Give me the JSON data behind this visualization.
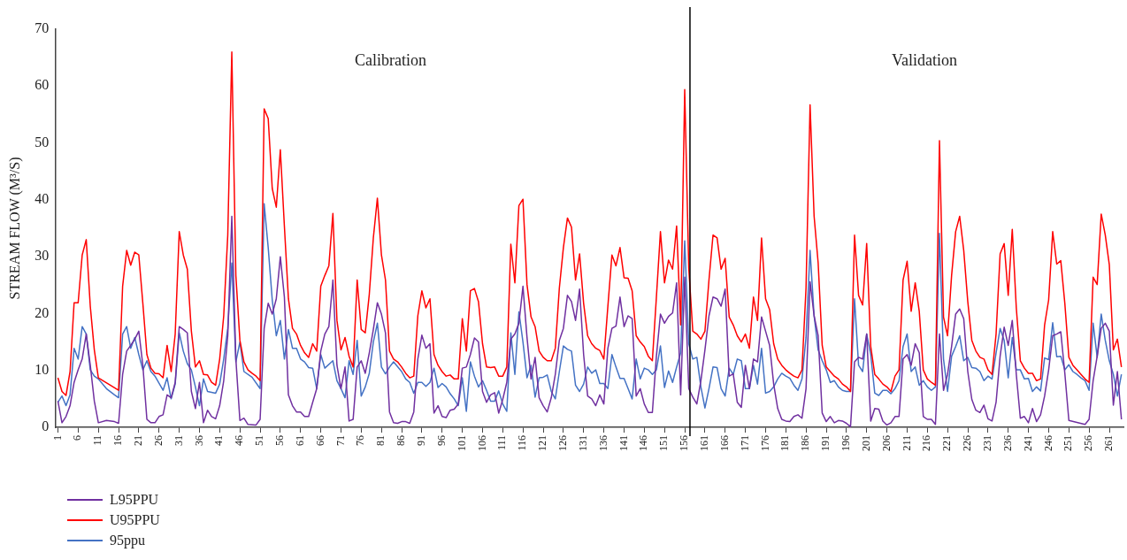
{
  "chart_data": {
    "type": "line",
    "ylabel": "STREAM FLOW (M³/S)",
    "xlim": [
      0.5,
      264.5
    ],
    "ylim": [
      0,
      70
    ],
    "yticks": [
      0,
      10,
      20,
      30,
      40,
      50,
      60,
      70
    ],
    "xticks": [
      1,
      6,
      11,
      16,
      21,
      26,
      31,
      36,
      41,
      46,
      51,
      56,
      61,
      66,
      71,
      76,
      81,
      86,
      91,
      96,
      101,
      106,
      111,
      116,
      121,
      126,
      131,
      136,
      141,
      146,
      151,
      156,
      161,
      166,
      171,
      176,
      181,
      186,
      191,
      196,
      201,
      206,
      211,
      216,
      221,
      226,
      231,
      236,
      241,
      246,
      251,
      256,
      261
    ],
    "legend": "bottom left",
    "ref_lines": [
      {
        "axis": "x",
        "value": 157.3,
        "color": "#000000"
      }
    ],
    "annotations": [
      "Calibration",
      "Validation"
    ],
    "series": [
      {
        "name": "L95PPU",
        "color": "#7030a0",
        "x": [
          1,
          2,
          3,
          4,
          5,
          6,
          7,
          8,
          9,
          10,
          11,
          13,
          15,
          16,
          17,
          18,
          19,
          20,
          21,
          22,
          23,
          24,
          25,
          26,
          27,
          28,
          29,
          30,
          31,
          32,
          33,
          34,
          35,
          36,
          37,
          38,
          39,
          40,
          41,
          42,
          43,
          44,
          45,
          46,
          47,
          48,
          50,
          51,
          52,
          53,
          54,
          55,
          56,
          57,
          58,
          59,
          60,
          61,
          62,
          63,
          64,
          65,
          66,
          67,
          68,
          69,
          70,
          71,
          72,
          73,
          74,
          75,
          76,
          77,
          78,
          79,
          80,
          81,
          82,
          83,
          84,
          85,
          86,
          87,
          88,
          89,
          90,
          91,
          92,
          93,
          94,
          95,
          96,
          97,
          98,
          99,
          100,
          101,
          102,
          103,
          104,
          105,
          106,
          107,
          108,
          109,
          110,
          111,
          112,
          113,
          114,
          115,
          116,
          117,
          118,
          119,
          120,
          121,
          122,
          123,
          124,
          125,
          126,
          127,
          128,
          129,
          130,
          131,
          132,
          133,
          134,
          135,
          136,
          137,
          138,
          139,
          140,
          141,
          142,
          143,
          144,
          145,
          146,
          147,
          148,
          149,
          150,
          151,
          152,
          153,
          154,
          155,
          156,
          157,
          158,
          159,
          160,
          161,
          162,
          163,
          164,
          165,
          166,
          167,
          168,
          169,
          170,
          171,
          172,
          173,
          174,
          175,
          176,
          177,
          178,
          179,
          180,
          181,
          182,
          183,
          184,
          185,
          186,
          187,
          188,
          189,
          190,
          191,
          192,
          193,
          194,
          195,
          196,
          197,
          198,
          199,
          200,
          201,
          202,
          203,
          204,
          205,
          206,
          207,
          208,
          209,
          210,
          211,
          212,
          213,
          214,
          215,
          216,
          217,
          218,
          219,
          220,
          221,
          222,
          223,
          224,
          225,
          226,
          227,
          228,
          229,
          230,
          231,
          232,
          233,
          234,
          235,
          236,
          237,
          238,
          239,
          240,
          241,
          242,
          243,
          244,
          245,
          246,
          247,
          248,
          249,
          250,
          251,
          255,
          256,
          257,
          258,
          259,
          260,
          261,
          262,
          263,
          264
        ],
        "values": [
          4.6,
          0.8,
          1.9,
          3.8,
          7.9,
          10.1,
          12,
          16.4,
          10.9,
          4.6,
          0.8,
          1.2,
          1,
          0.7,
          9.3,
          13.4,
          14.4,
          15.5,
          16.9,
          10.9,
          1.4,
          0.8,
          0.8,
          1.9,
          2.2,
          5.7,
          5.2,
          7.9,
          17.7,
          17.2,
          16.6,
          6.3,
          3.3,
          7.9,
          0.8,
          3,
          1.9,
          1.5,
          3.8,
          8.2,
          16.1,
          37.1,
          12,
          1.2,
          1.6,
          0.5,
          0.4,
          1.4,
          17.4,
          21.8,
          19.9,
          22.6,
          30,
          22.9,
          5.7,
          3.8,
          2.7,
          2.7,
          1.9,
          1.9,
          4.4,
          6.8,
          13.4,
          16.4,
          17.7,
          25.9,
          10.9,
          6.8,
          10.6,
          1.1,
          1.4,
          10.6,
          11.7,
          9.5,
          13.1,
          17.2,
          21.9,
          19.9,
          16.6,
          2.7,
          0.8,
          0.7,
          1,
          1,
          0.7,
          2.7,
          12,
          16.2,
          13.9,
          14.7,
          2.5,
          3.8,
          1.9,
          1.7,
          3,
          3.2,
          4.1,
          10.4,
          10.6,
          12.8,
          15.7,
          15,
          6.3,
          4.4,
          5.7,
          6.1,
          2.5,
          4.9,
          7.9,
          15.5,
          16.4,
          18.3,
          24.8,
          15.8,
          8.5,
          12.3,
          5.2,
          3.8,
          2.7,
          5.2,
          9.3,
          15.3,
          17.4,
          23.2,
          22.1,
          18.8,
          24.3,
          12.8,
          5.5,
          5,
          3.8,
          5.7,
          4.1,
          13.9,
          17.4,
          17.8,
          22.9,
          17.7,
          19.6,
          19.1,
          5.5,
          6.8,
          4.1,
          2.6,
          2.6,
          12.5,
          19.9,
          18.3,
          19.5,
          20.1,
          25.4,
          5.7,
          26.4,
          6.8,
          5.3,
          4.1,
          8.2,
          13.6,
          19.6,
          22.9,
          22.6,
          21.3,
          24.3,
          9,
          9.4,
          4.4,
          3.5,
          10.9,
          6.8,
          12,
          11.5,
          19.4,
          16.9,
          14.4,
          7.6,
          3.3,
          1.4,
          1.1,
          1,
          1.9,
          2.2,
          1.6,
          6.8,
          25.6,
          19.6,
          16.1,
          2.5,
          1,
          1.9,
          0.8,
          1.2,
          1.1,
          0.7,
          0.1,
          11.5,
          12.3,
          12,
          16.4,
          1.1,
          3.3,
          3.2,
          1.1,
          0.4,
          0.8,
          1.9,
          1.9,
          12,
          12.8,
          10.9,
          14.7,
          13.1,
          1.9,
          1.4,
          1.4,
          0.5,
          16.4,
          6.5,
          9.3,
          14.2,
          19.9,
          20.8,
          19.1,
          9.8,
          4.9,
          3,
          2.6,
          3.9,
          1.5,
          1.1,
          4.4,
          12.5,
          17.6,
          14.4,
          18.8,
          9.3,
          1.6,
          1.9,
          0.8,
          3.3,
          1,
          2.2,
          5.5,
          10.1,
          16.1,
          16.4,
          16.8,
          9.5,
          1.2,
          0.5,
          1.4,
          8.2,
          12.5,
          17.4,
          18.3,
          16.9,
          3.9,
          9.8,
          1.4
        ]
      },
      {
        "name": "U95PPU",
        "color": "#ff0000",
        "x": [
          1,
          2,
          3,
          4,
          5,
          6,
          7,
          8,
          9,
          10,
          11,
          16,
          17,
          18,
          19,
          20,
          21,
          22,
          23,
          24,
          25,
          26,
          27,
          28,
          29,
          30,
          31,
          32,
          33,
          34,
          35,
          36,
          37,
          38,
          39,
          40,
          41,
          42,
          43,
          44,
          45,
          46,
          47,
          48,
          49,
          50,
          51,
          52,
          53,
          54,
          55,
          56,
          57,
          58,
          59,
          60,
          61,
          62,
          63,
          64,
          65,
          66,
          67,
          68,
          69,
          70,
          71,
          72,
          73,
          74,
          75,
          76,
          77,
          78,
          79,
          80,
          81,
          82,
          83,
          84,
          85,
          86,
          87,
          88,
          89,
          90,
          91,
          92,
          93,
          94,
          95,
          96,
          97,
          98,
          99,
          100,
          101,
          102,
          103,
          104,
          105,
          106,
          107,
          108,
          109,
          110,
          111,
          112,
          113,
          114,
          115,
          116,
          117,
          118,
          119,
          120,
          121,
          122,
          123,
          124,
          125,
          126,
          127,
          128,
          129,
          130,
          131,
          132,
          133,
          134,
          135,
          136,
          137,
          138,
          139,
          140,
          141,
          142,
          143,
          144,
          145,
          146,
          147,
          148,
          149,
          150,
          151,
          152,
          153,
          154,
          155,
          156,
          157,
          158,
          159,
          160,
          161,
          162,
          163,
          164,
          165,
          166,
          167,
          168,
          169,
          170,
          171,
          172,
          173,
          174,
          175,
          176,
          177,
          178,
          179,
          180,
          181,
          182,
          183,
          184,
          185,
          186,
          187,
          188,
          189,
          190,
          191,
          192,
          193,
          194,
          195,
          196,
          197,
          198,
          199,
          200,
          201,
          202,
          203,
          204,
          205,
          206,
          207,
          208,
          209,
          210,
          211,
          212,
          213,
          214,
          215,
          216,
          217,
          218,
          219,
          220,
          221,
          222,
          223,
          224,
          225,
          226,
          227,
          228,
          229,
          230,
          231,
          232,
          233,
          234,
          235,
          236,
          237,
          238,
          239,
          240,
          241,
          242,
          243,
          244,
          245,
          246,
          247,
          248,
          249,
          250,
          251,
          252,
          253,
          254,
          255,
          256,
          257,
          258,
          259,
          260,
          261,
          262,
          263,
          264
        ],
        "values": [
          8.7,
          6.3,
          5.6,
          9.8,
          21.9,
          21.9,
          30.3,
          33,
          21.3,
          13.6,
          8.7,
          6.5,
          24.8,
          31.1,
          28.5,
          30.8,
          30.3,
          21.8,
          12.8,
          10.4,
          9.5,
          9.4,
          8.7,
          14.4,
          9.8,
          16.4,
          34.4,
          30.3,
          27.8,
          16.9,
          10.6,
          11.7,
          9.3,
          9.2,
          7.9,
          7.4,
          12,
          19.6,
          33.8,
          66,
          26.7,
          15.3,
          11.5,
          10.1,
          9.5,
          9,
          8.2,
          56,
          54.3,
          42,
          38.7,
          48.8,
          35.4,
          22.6,
          17.4,
          16.4,
          14.4,
          13.1,
          12.3,
          14.7,
          13.4,
          24.8,
          26.7,
          28.4,
          37.6,
          18.8,
          13.6,
          15.8,
          12.5,
          10.6,
          25.9,
          17.2,
          16.6,
          23.4,
          33.3,
          40.3,
          30.3,
          25.9,
          13.4,
          12,
          11.5,
          10.6,
          9.5,
          8.7,
          9,
          19.6,
          24,
          21,
          22.6,
          12.8,
          10.9,
          9.8,
          9,
          9.2,
          8.5,
          8.5,
          19.1,
          13.4,
          24,
          24.4,
          22.1,
          14.7,
          10.6,
          10.5,
          10.6,
          9,
          9,
          10.6,
          32.2,
          25.4,
          39,
          40.1,
          25.1,
          19.4,
          17.7,
          13.4,
          12.3,
          11.7,
          11.7,
          13.9,
          24.5,
          31.6,
          36.8,
          35.2,
          25.9,
          30.5,
          21.8,
          16.1,
          14.7,
          13.9,
          13.5,
          12,
          21.3,
          30.3,
          28.4,
          31.6,
          26.3,
          26.2,
          24,
          16.1,
          15,
          14.2,
          12.5,
          11.7,
          22.9,
          34.4,
          25.4,
          29.4,
          27.8,
          35.4,
          18,
          59.4,
          28,
          16.9,
          16.4,
          15.5,
          16.9,
          25.9,
          33.8,
          33.3,
          27.8,
          29.7,
          19.4,
          18,
          16.1,
          15,
          16.4,
          13.9,
          22.9,
          18.8,
          33.3,
          22.6,
          20.7,
          14.7,
          12,
          10.9,
          10.1,
          9.5,
          9,
          8.7,
          10.1,
          24.5,
          56.7,
          37.1,
          28.9,
          14.4,
          10.6,
          9.8,
          9,
          8.5,
          7.6,
          7.1,
          6.3,
          33.8,
          23.2,
          21.5,
          32.3,
          14.2,
          9.3,
          8.5,
          7.6,
          7.1,
          6.3,
          9,
          10.1,
          25.9,
          29.2,
          20.4,
          25.4,
          20.4,
          10.1,
          8.5,
          7.9,
          7.4,
          50.4,
          19.4,
          16.1,
          26.7,
          34.4,
          37.1,
          31.1,
          22.1,
          15.3,
          13.4,
          12.3,
          12,
          10.1,
          9.3,
          16.4,
          30.5,
          32.3,
          23.2,
          34.8,
          21,
          11.7,
          10.4,
          9.5,
          9.5,
          8.2,
          8.5,
          18,
          22.4,
          34.4,
          28.7,
          29.3,
          21.8,
          12.3,
          10.9,
          10.1,
          9.3,
          8.5,
          7.9,
          26.4,
          25.1,
          37.5,
          33.8,
          28.6,
          13.6,
          15.5,
          10.6
        ]
      },
      {
        "name": "95ppu",
        "color": "#4472c4",
        "x": [
          1,
          2,
          3,
          4,
          5,
          6,
          7,
          8,
          9,
          10,
          11,
          13,
          15,
          16,
          17,
          18,
          19,
          20,
          21,
          22,
          23,
          24,
          25,
          27,
          28,
          29,
          30,
          31,
          32,
          33,
          34,
          35,
          36,
          37,
          38,
          40,
          41,
          42,
          43,
          44,
          45,
          46,
          47,
          49,
          51,
          52,
          53,
          54,
          55,
          56,
          57,
          58,
          59,
          60,
          61,
          62,
          63,
          64,
          65,
          66,
          67,
          69,
          70,
          71,
          72,
          73,
          74,
          75,
          76,
          77,
          78,
          79,
          80,
          81,
          82,
          83,
          84,
          86,
          87,
          88,
          89,
          90,
          91,
          92,
          93,
          94,
          95,
          96,
          97,
          98,
          99,
          100,
          101,
          102,
          103,
          104,
          105,
          106,
          107,
          108,
          109,
          110,
          111,
          112,
          113,
          114,
          115,
          116,
          117,
          118,
          119,
          120,
          121,
          122,
          123,
          124,
          125,
          126,
          127,
          128,
          129,
          130,
          131,
          132,
          133,
          134,
          135,
          136,
          137,
          138,
          139,
          140,
          141,
          142,
          143,
          144,
          145,
          146,
          147,
          148,
          149,
          150,
          151,
          152,
          153,
          154,
          155,
          156,
          157,
          158,
          159,
          160,
          161,
          162,
          163,
          164,
          165,
          166,
          167,
          168,
          169,
          170,
          171,
          172,
          173,
          174,
          175,
          176,
          177,
          178,
          179,
          180,
          181,
          182,
          183,
          184,
          185,
          186,
          187,
          188,
          189,
          190,
          191,
          192,
          193,
          194,
          195,
          196,
          197,
          198,
          199,
          200,
          201,
          202,
          203,
          204,
          205,
          206,
          207,
          208,
          209,
          210,
          211,
          212,
          213,
          214,
          215,
          216,
          217,
          218,
          219,
          220,
          221,
          222,
          223,
          224,
          225,
          226,
          227,
          228,
          229,
          230,
          231,
          232,
          233,
          234,
          235,
          236,
          237,
          238,
          239,
          240,
          241,
          242,
          243,
          244,
          245,
          246,
          247,
          248,
          249,
          250,
          251,
          252,
          253,
          254,
          255,
          256,
          257,
          258,
          259,
          260,
          261,
          262,
          263,
          264
        ],
        "values": [
          4.4,
          5.5,
          3.8,
          5.7,
          13.9,
          12,
          17.7,
          16.4,
          10.1,
          9,
          8.5,
          6.8,
          5.7,
          5.2,
          16.4,
          17.7,
          13.9,
          15.8,
          12.8,
          10.1,
          11.7,
          9.8,
          9,
          6.5,
          8.7,
          5,
          7.6,
          16.6,
          13.4,
          11.2,
          10.1,
          7.1,
          3.8,
          8.5,
          6.3,
          6,
          7.6,
          12,
          17.4,
          28.9,
          11.5,
          15,
          9.8,
          8.8,
          6.8,
          39.3,
          31.6,
          22.4,
          16.1,
          18.8,
          12,
          17.2,
          13.9,
          13.9,
          12,
          11.5,
          10.5,
          10.4,
          6.8,
          12.8,
          10.4,
          11.7,
          8.2,
          6.8,
          5.2,
          11.7,
          9.3,
          15.3,
          5.5,
          7.1,
          9.5,
          15,
          18.3,
          10.6,
          9.4,
          10.6,
          11.5,
          9.8,
          8.5,
          7.9,
          6,
          7.9,
          7.9,
          7.2,
          7.9,
          10.4,
          7,
          7.7,
          7.1,
          5.9,
          5,
          3.8,
          8.7,
          2.8,
          11.5,
          9,
          7.1,
          8.2,
          6.5,
          4.6,
          4.6,
          6.4,
          4.1,
          2.8,
          16.6,
          9.3,
          20.3,
          15,
          8.7,
          10.9,
          5.3,
          8.7,
          8.8,
          9.2,
          6.3,
          5,
          9.8,
          14.3,
          13.7,
          13.4,
          7.4,
          6.3,
          7.6,
          10.6,
          9.5,
          10.1,
          7.7,
          7.7,
          6.8,
          12.8,
          10.6,
          8.6,
          8.6,
          6.8,
          5,
          12,
          8.5,
          10.4,
          10.1,
          9.3,
          10.1,
          14.3,
          7,
          9.9,
          7.9,
          10.6,
          13.1,
          32.8,
          14.7,
          12,
          12.3,
          7.1,
          3.4,
          6.8,
          10.6,
          10.5,
          6.8,
          5.5,
          10.4,
          9.3,
          12,
          11.7,
          6.8,
          6.8,
          10.9,
          7.6,
          13.9,
          6,
          6.3,
          7.1,
          8.5,
          9.5,
          9,
          8.6,
          7.4,
          6.5,
          8.5,
          15.8,
          31.1,
          19.6,
          13.6,
          11.7,
          10.1,
          7.9,
          8.2,
          7.1,
          6.5,
          6.3,
          6.3,
          22.6,
          10.9,
          9.8,
          16.4,
          12.8,
          6,
          5.6,
          6.5,
          6.5,
          5.9,
          6.8,
          8.2,
          14.2,
          16.4,
          9.8,
          10.6,
          7.4,
          8.2,
          7.1,
          6.5,
          7.1,
          34.1,
          12,
          6.3,
          12.5,
          14.2,
          16.1,
          11.7,
          12.3,
          10.5,
          10.4,
          9.8,
          8.2,
          9,
          8.5,
          13.1,
          17.4,
          15.3,
          8.7,
          15.8,
          10.1,
          10.1,
          8.5,
          8.6,
          6.3,
          7.1,
          6.4,
          12.2,
          11.9,
          18.4,
          12.4,
          12.5,
          10.1,
          11,
          9.8,
          9.3,
          8.7,
          8.2,
          6.5,
          18.3,
          12.3,
          19.9,
          15.3,
          11.7,
          9.3,
          5.5,
          9.3
        ]
      }
    ]
  }
}
